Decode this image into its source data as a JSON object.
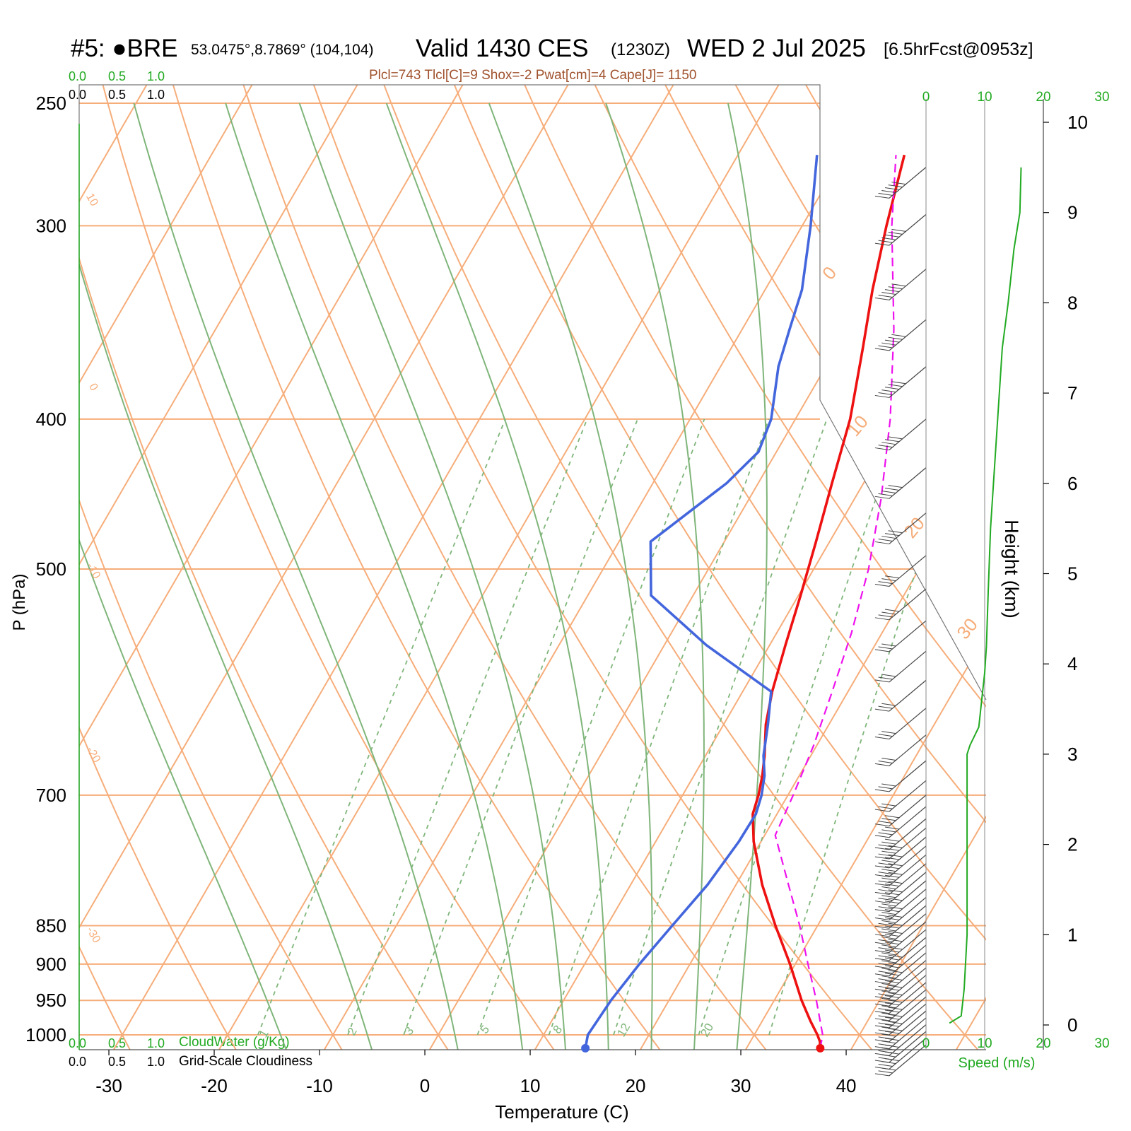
{
  "header": {
    "station": "#5: ●BRE",
    "coords": "53.0475°,8.7869° (104,104)",
    "valid": "Valid 1430 CES",
    "zulu": "(1230Z)",
    "date": "WED 2 Jul 2025",
    "forecast": "[6.5hrFcst@0953z]",
    "indices": "Plcl=743 Tlcl[C]=9 Shox=-2 Pwat[cm]=4 Cape[J]= 1150"
  },
  "colors": {
    "temperature": "#ee1111",
    "dewpoint": "#4466dd",
    "parcel": "#ee11ee",
    "isotherm_isobar": "#f6ad7a",
    "moist_adiabat": "#7fb57a",
    "mixing_ratio": "#7fb57a",
    "green_text": "#22aa22",
    "index_text": "#a0522d"
  },
  "labels": {
    "ylabel": "P (hPa)",
    "xlabel": "Temperature (C)",
    "height_label": "Height (km)",
    "speed_label": "Speed (m/s)",
    "cloudwater_label": "CloudWater (g/Kg)",
    "cloudiness_label": "Grid-Scale Cloudiness",
    "cw_ticks": [
      "0.0",
      "0.5",
      "1.0"
    ],
    "cloud_ticks": [
      "0.0",
      "0.5",
      "1.0"
    ],
    "speed_ticks": [
      "0",
      "10",
      "20",
      "30"
    ]
  },
  "chart_data": {
    "type": "line",
    "pressure_axis": {
      "ticks": [
        250,
        300,
        400,
        500,
        700,
        850,
        900,
        950,
        1000
      ],
      "tick_labels": [
        "250",
        "300",
        "400",
        "500",
        "700",
        "850",
        "900",
        "950",
        "1000"
      ]
    },
    "temperature_axis": {
      "ticks": [
        -30,
        -20,
        -10,
        0,
        10,
        20,
        30,
        40
      ],
      "tick_labels": [
        "-30",
        "-20",
        "-10",
        "0",
        "10",
        "20",
        "30",
        "40"
      ]
    },
    "height_axis": {
      "ticks": [
        0,
        1,
        2,
        3,
        4,
        5,
        6,
        7,
        8,
        9,
        10
      ],
      "tick_labels": [
        "0",
        "1",
        "2",
        "3",
        "4",
        "5",
        "6",
        "7",
        "8",
        "9",
        "10"
      ]
    },
    "isotherm_labels": [
      "10",
      "0",
      "-10",
      "-20",
      "-30",
      "0",
      "10",
      "20",
      "30"
    ],
    "mixing_ratio_labels": [
      "1",
      "2",
      "3",
      "5",
      "8",
      "12",
      "20"
    ],
    "series": [
      {
        "name": "temperature",
        "p": [
          1020,
          1010,
          1000,
          980,
          950,
          900,
          850,
          800,
          750,
          720,
          700,
          680,
          660,
          630,
          600,
          560,
          520,
          480,
          440,
          400,
          360,
          330,
          300,
          270
        ],
        "t": [
          37,
          36.6,
          36,
          34.6,
          32.6,
          29.5,
          26,
          22.5,
          19.3,
          17.7,
          17.2,
          16.5,
          15.6,
          14,
          12.8,
          11.5,
          10.2,
          8.7,
          7,
          5.2,
          2.5,
          0.2,
          -2,
          -4.2
        ]
      },
      {
        "name": "dewpoint",
        "p": [
          1020,
          1000,
          950,
          900,
          850,
          800,
          750,
          720,
          700,
          680,
          660,
          630,
          600,
          560,
          520,
          480,
          440,
          420,
          400,
          370,
          350,
          330,
          300,
          270
        ],
        "t": [
          14.7,
          14.2,
          14.5,
          15.2,
          16.2,
          17.3,
          17.9,
          18,
          17.5,
          16.7,
          15.5,
          14.2,
          12.7,
          4,
          -4,
          -7,
          -3,
          -1.7,
          -2.3,
          -4.5,
          -5.5,
          -6.5,
          -9.2,
          -12.5
        ]
      },
      {
        "name": "parcel",
        "p": [
          1020,
          1000,
          950,
          900,
          850,
          800,
          743,
          700,
          650,
          600,
          550,
          500,
          450,
          400,
          350,
          300,
          270
        ],
        "t": [
          37,
          36.5,
          34,
          31.2,
          28.3,
          25,
          21,
          20.5,
          19.7,
          18.5,
          17.1,
          15.2,
          12.5,
          9,
          4.4,
          -1.5,
          -5
        ]
      }
    ],
    "winds": {
      "p": [
        1015,
        1005,
        995,
        985,
        975,
        965,
        955,
        945,
        935,
        925,
        915,
        905,
        895,
        885,
        875,
        865,
        855,
        845,
        835,
        825,
        815,
        805,
        795,
        785,
        775,
        765,
        755,
        745,
        735,
        725,
        712,
        700,
        685,
        665,
        640,
        615,
        590,
        565,
        540,
        515,
        490,
        460,
        430,
        400,
        370,
        345,
        320,
        295,
        275
      ],
      "speed": [
        7,
        9,
        10,
        11,
        11,
        12,
        12,
        12,
        12,
        12,
        12,
        12,
        12,
        12,
        12,
        12,
        12,
        12,
        12,
        12,
        12,
        12,
        12,
        12,
        12,
        12,
        12,
        12,
        12,
        10,
        10,
        10,
        8,
        7,
        8,
        8,
        7,
        8,
        8,
        10,
        10,
        12,
        12,
        12,
        15,
        15,
        15,
        15,
        15
      ]
    },
    "speed_profile": {
      "speed": [
        4,
        6,
        6.5,
        7,
        7,
        7,
        7,
        7.5,
        9,
        9.5,
        10,
        10.3,
        10.6,
        11,
        12,
        13,
        14,
        15,
        16,
        16.2
      ],
      "height_km": [
        0.02,
        0.1,
        0.4,
        1,
        2,
        2.8,
        3,
        3.1,
        3.3,
        3.6,
        3.9,
        4.2,
        4.8,
        5.5,
        6.5,
        7.5,
        8,
        8.6,
        9,
        9.5
      ]
    }
  }
}
